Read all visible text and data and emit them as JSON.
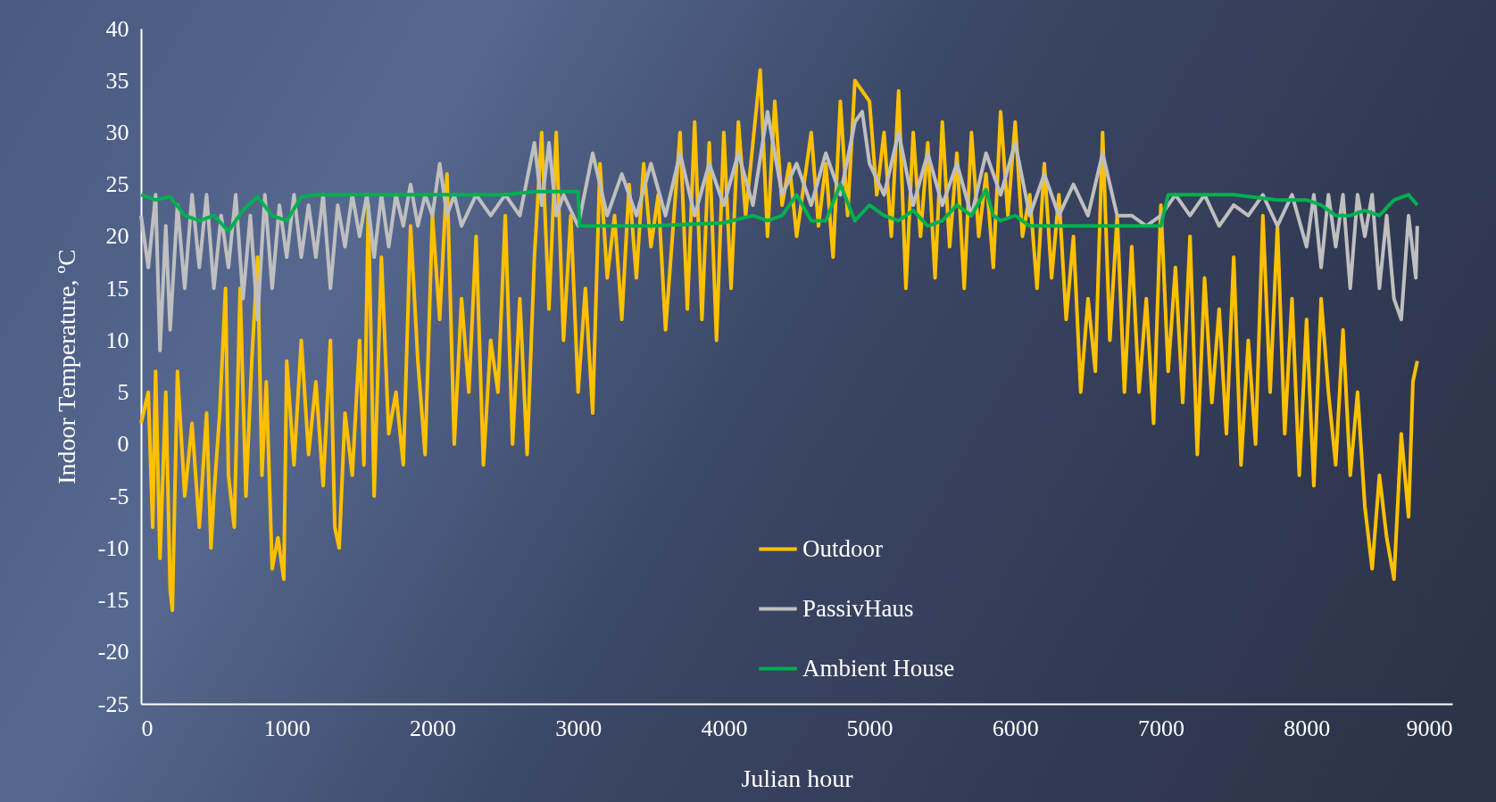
{
  "chart_data": {
    "type": "line",
    "xlabel": "Julian hour",
    "ylabel": "Indoor Temperature, ºC",
    "xlim": [
      0,
      9000
    ],
    "xticks": [
      0,
      1000,
      2000,
      3000,
      4000,
      5000,
      6000,
      7000,
      8000,
      9000
    ],
    "ylim": [
      -25,
      40
    ],
    "yticks": [
      -25,
      -20,
      -15,
      -10,
      -5,
      0,
      5,
      10,
      15,
      20,
      25,
      30,
      35,
      40
    ],
    "grid": false,
    "legend": "bottom",
    "line_style": "solid",
    "marker": "none",
    "series": [
      {
        "name": "Outdoor",
        "color": "#ffc000",
        "x": [
          0,
          50,
          80,
          100,
          130,
          170,
          200,
          215,
          250,
          300,
          350,
          400,
          450,
          480,
          500,
          540,
          580,
          600,
          640,
          680,
          720,
          760,
          800,
          830,
          860,
          900,
          940,
          980,
          1000,
          1050,
          1100,
          1150,
          1200,
          1250,
          1300,
          1330,
          1360,
          1400,
          1450,
          1500,
          1530,
          1560,
          1600,
          1650,
          1700,
          1750,
          1800,
          1850,
          1900,
          1950,
          2000,
          2050,
          2100,
          2150,
          2200,
          2250,
          2300,
          2350,
          2400,
          2450,
          2500,
          2550,
          2600,
          2650,
          2700,
          2750,
          2800,
          2850,
          2900,
          2950,
          3000,
          3050,
          3100,
          3150,
          3200,
          3250,
          3300,
          3350,
          3400,
          3450,
          3500,
          3550,
          3600,
          3700,
          3750,
          3800,
          3850,
          3900,
          3950,
          4000,
          4050,
          4100,
          4150,
          4250,
          4300,
          4350,
          4400,
          4450,
          4500,
          4600,
          4650,
          4700,
          4750,
          4800,
          4850,
          4900,
          5000,
          5050,
          5100,
          5150,
          5200,
          5250,
          5300,
          5350,
          5400,
          5450,
          5500,
          5550,
          5600,
          5650,
          5700,
          5750,
          5800,
          5850,
          5900,
          5950,
          6000,
          6050,
          6100,
          6150,
          6200,
          6250,
          6300,
          6350,
          6400,
          6450,
          6500,
          6550,
          6600,
          6650,
          6700,
          6750,
          6800,
          6850,
          6900,
          6950,
          7000,
          7050,
          7100,
          7150,
          7200,
          7250,
          7300,
          7350,
          7400,
          7450,
          7500,
          7550,
          7600,
          7650,
          7700,
          7750,
          7800,
          7850,
          7900,
          7950,
          8000,
          8050,
          8100,
          8150,
          8200,
          8250,
          8300,
          8350,
          8400,
          8450,
          8500,
          8550,
          8600,
          8650,
          8700,
          8730,
          8760
        ],
        "values": [
          2,
          5,
          -8,
          7,
          -11,
          5,
          -14,
          -16,
          7,
          -5,
          2,
          -8,
          3,
          -10,
          -5,
          3,
          15,
          -3,
          -8,
          15,
          -5,
          8,
          18,
          -3,
          6,
          -12,
          -9,
          -13,
          8,
          -2,
          10,
          -1,
          6,
          -4,
          10,
          -8,
          -10,
          3,
          -3,
          10,
          -2,
          23,
          -5,
          18,
          1,
          5,
          -2,
          21,
          8,
          -1,
          22,
          12,
          26,
          0,
          14,
          5,
          20,
          -2,
          10,
          5,
          22,
          0,
          14,
          -1,
          18,
          30,
          13,
          30,
          10,
          22,
          5,
          15,
          3,
          27,
          16,
          22,
          12,
          25,
          16,
          27,
          19,
          24,
          11,
          30,
          13,
          31,
          12,
          29,
          10,
          30,
          15,
          31,
          22,
          36,
          20,
          33,
          23,
          27,
          20,
          30,
          21,
          27,
          18,
          33,
          22,
          35,
          33,
          24,
          30,
          20,
          34,
          15,
          30,
          20,
          29,
          16,
          31,
          19,
          28,
          15,
          30,
          20,
          26,
          17,
          32,
          22,
          31,
          20,
          24,
          15,
          27,
          16,
          24,
          12,
          20,
          5,
          14,
          7,
          30,
          10,
          22,
          5,
          19,
          5,
          14,
          2,
          23,
          7,
          17,
          4,
          20,
          -1,
          16,
          4,
          13,
          1,
          18,
          -2,
          10,
          0,
          22,
          5,
          21,
          1,
          14,
          -3,
          12,
          -4,
          14,
          5,
          -2,
          11,
          -3,
          5,
          -6,
          -12,
          -3,
          -9,
          -13,
          1,
          -7,
          6,
          8
        ]
      },
      {
        "name": "PassivHaus",
        "color": "#bfbfbf",
        "x": [
          0,
          50,
          100,
          130,
          170,
          200,
          250,
          300,
          350,
          400,
          450,
          500,
          550,
          600,
          650,
          700,
          750,
          800,
          850,
          900,
          950,
          1000,
          1050,
          1100,
          1150,
          1200,
          1250,
          1300,
          1350,
          1400,
          1450,
          1500,
          1550,
          1600,
          1650,
          1700,
          1750,
          1800,
          1850,
          1900,
          1950,
          2000,
          2050,
          2100,
          2150,
          2200,
          2300,
          2400,
          2500,
          2600,
          2700,
          2750,
          2800,
          2850,
          2900,
          3000,
          3100,
          3200,
          3300,
          3400,
          3500,
          3600,
          3700,
          3800,
          3900,
          4000,
          4100,
          4200,
          4300,
          4400,
          4500,
          4600,
          4700,
          4800,
          4900,
          4950,
          5000,
          5100,
          5200,
          5300,
          5400,
          5500,
          5600,
          5700,
          5800,
          5900,
          6000,
          6100,
          6200,
          6300,
          6400,
          6500,
          6600,
          6700,
          6800,
          6900,
          7000,
          7100,
          7200,
          7300,
          7400,
          7500,
          7600,
          7700,
          7800,
          7900,
          8000,
          8050,
          8100,
          8150,
          8200,
          8250,
          8300,
          8350,
          8400,
          8450,
          8500,
          8550,
          8600,
          8650,
          8700,
          8750,
          8760
        ],
        "values": [
          22,
          17,
          24,
          9,
          21,
          11,
          23,
          15,
          24,
          17,
          24,
          15,
          22,
          17,
          24,
          14,
          22,
          12,
          24,
          15,
          23,
          18,
          24,
          18,
          23,
          18,
          24,
          15,
          23,
          19,
          24,
          20,
          24,
          18,
          24,
          19,
          24,
          21,
          25,
          21,
          24,
          22,
          27,
          22,
          24,
          21,
          24,
          22,
          24,
          22,
          29,
          23,
          29,
          22,
          24,
          21,
          28,
          22,
          26,
          22,
          27,
          22,
          28,
          22,
          27,
          23,
          28,
          23,
          32,
          24,
          27,
          23,
          28,
          24,
          31,
          32,
          27,
          24,
          30,
          23,
          28,
          23,
          27,
          22,
          28,
          24,
          29,
          22,
          26,
          22,
          25,
          22,
          28,
          22,
          22,
          21,
          22,
          24,
          22,
          24,
          21,
          23,
          22,
          24,
          21,
          24,
          19,
          24,
          17,
          24,
          19,
          24,
          15,
          24,
          20,
          24,
          15,
          22,
          14,
          12,
          22,
          16,
          21
        ]
      },
      {
        "name": "Ambient House",
        "color": "#00b050",
        "x": [
          0,
          100,
          200,
          300,
          400,
          500,
          600,
          700,
          800,
          900,
          1000,
          1100,
          1200,
          1700,
          2000,
          2500,
          2700,
          3000,
          3010,
          3500,
          4000,
          4200,
          4300,
          4400,
          4500,
          4600,
          4700,
          4800,
          4900,
          5000,
          5100,
          5200,
          5300,
          5400,
          5500,
          5600,
          5700,
          5800,
          5850,
          5900,
          6000,
          6100,
          6500,
          7000,
          7050,
          7500,
          7800,
          8000,
          8100,
          8200,
          8300,
          8400,
          8500,
          8600,
          8700,
          8760
        ],
        "values": [
          24,
          23.5,
          23.8,
          22,
          21.5,
          22,
          20.5,
          22.5,
          23.8,
          22,
          21.5,
          23.8,
          24,
          24,
          24,
          24,
          24.3,
          24.3,
          21,
          21,
          21.3,
          22,
          21.5,
          22,
          24,
          21.5,
          21.5,
          25,
          21.5,
          23,
          22,
          21.5,
          22.5,
          21,
          21.5,
          23,
          22,
          24.5,
          22,
          21.5,
          22,
          21,
          21,
          21,
          24,
          24,
          23.5,
          23.5,
          23,
          22,
          22,
          22.5,
          22,
          23.5,
          24,
          23
        ]
      }
    ]
  }
}
